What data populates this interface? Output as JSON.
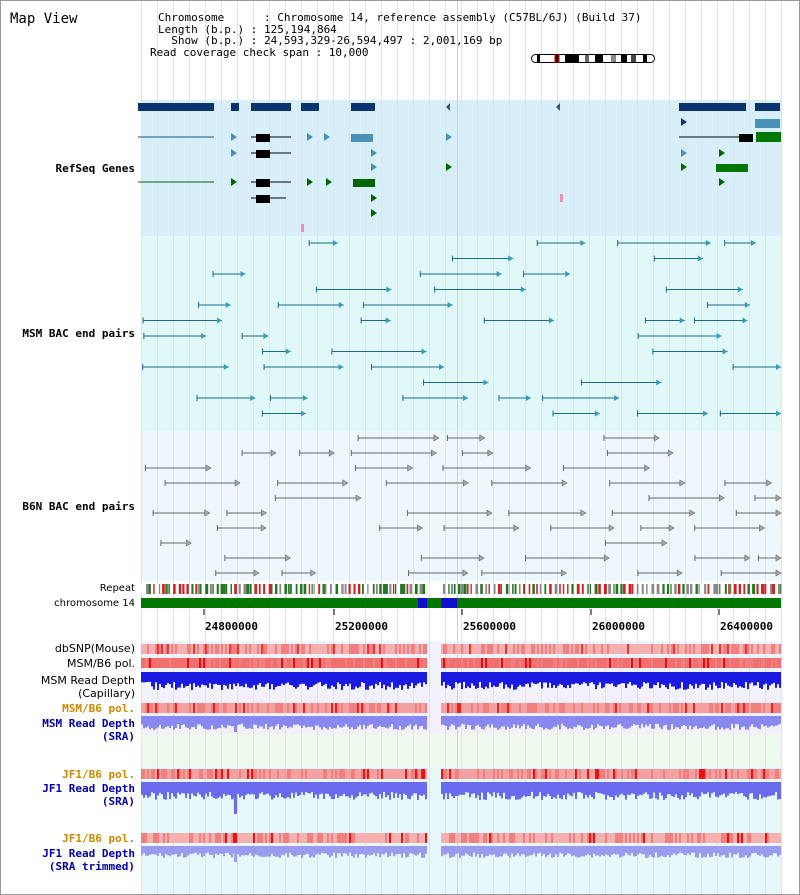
{
  "title": "Map View",
  "info": {
    "chromosome": "Chromosome      : Chromosome 14, reference assembly (C57BL/6J) (Build 37)",
    "length": "Length (b.p.) : 125,194,864",
    "show": "  Show (b.p.) : 24,593,329-26,594,497 : 2,001,169 bp",
    "coverage": "Read coverage check span : 10,000"
  },
  "tracks": {
    "refseq": "RefSeq Genes",
    "msm_bac": "MSM BAC end pairs",
    "b6n_bac": "B6N BAC end pairs",
    "repeat": "Repeat",
    "chromosome": "chromosome 14",
    "dbsnp": "dbSNP(Mouse)",
    "msm_b6_pol_1": "MSM/B6 pol.",
    "msm_depth_cap_1": "MSM Read Depth",
    "msm_depth_cap_2": "(Capillary)",
    "msm_b6_pol_2": "MSM/B6 pol.",
    "msm_depth_sra_1": "MSM Read Depth",
    "msm_depth_sra_2": "(SRA)",
    "jf1_pol_1": "JF1/B6 pol.",
    "jf1_depth_sra_1": "JF1 Read Depth",
    "jf1_depth_sra_2": "(SRA)",
    "jf1_pol_2": "JF1/B6 pol.",
    "jf1_depth_trim_1": "JF1 Read Depth",
    "jf1_depth_trim_2": "(SRA trimmed)"
  },
  "axis_ticks": [
    "24800000",
    "25200000",
    "25600000",
    "26000000",
    "26400000"
  ],
  "colors": {
    "refseq_label": "#0000aa",
    "msm_label": "#006688",
    "b6n_label": "#555555",
    "pol_label": "#cc8800",
    "depth_label": "#0000aa",
    "refseq_bg": "#d8effa",
    "msm_bg": "#e0f8f8",
    "b6n_bg": "#eef8fc",
    "chrom_green": "#007700"
  }
}
